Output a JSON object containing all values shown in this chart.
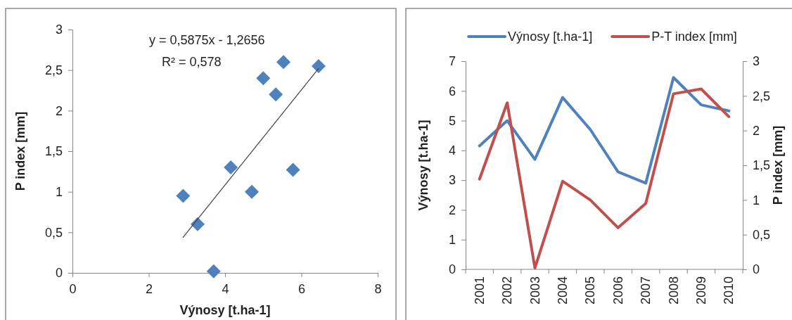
{
  "chart_data": [
    {
      "type": "scatter",
      "xlabel": "Výnosy [t.ha-1]",
      "ylabel": "P index [mm]",
      "annotations": [
        "y = 0,5875x - 1,2656",
        "R² = 0,578"
      ],
      "x": [
        4.15,
        5.0,
        3.7,
        5.78,
        4.7,
        3.28,
        2.9,
        6.45,
        5.53,
        5.33
      ],
      "series": [
        {
          "type": "scatter",
          "marker": "diamond",
          "color": "#4f81bd",
          "values": [
            1.3,
            2.4,
            0.02,
            1.27,
            1.0,
            0.6,
            0.95,
            2.55,
            2.6,
            2.2
          ]
        },
        {
          "type": "line",
          "marker": "none",
          "color": "#404040",
          "x": [
            2.9,
            6.45
          ],
          "values": [
            0.44,
            2.52
          ]
        }
      ],
      "xlim": [
        0,
        8
      ],
      "xticks": [
        0,
        2,
        4,
        6,
        8
      ],
      "ylim": [
        0,
        3
      ],
      "yticks": [
        0,
        {
          "value": 0.5,
          "label": "0,5"
        },
        1,
        {
          "value": 1.5,
          "label": "1,5"
        },
        2,
        {
          "value": 2.5,
          "label": "2,5"
        },
        3
      ]
    },
    {
      "type": "line",
      "ylabel": "Výnosy [t.ha-1]",
      "y2label": "P index [mm]",
      "categories": [
        "2001",
        "2002",
        "2003",
        "2004",
        "2005",
        "2006",
        "2007",
        "2008",
        "2009",
        "2010"
      ],
      "series": [
        {
          "name": "Výnosy [t.ha-1]",
          "color": "#4f81bd",
          "values": [
            4.15,
            5.0,
            3.7,
            5.78,
            4.7,
            3.28,
            2.9,
            6.45,
            5.53,
            5.33
          ]
        },
        {
          "name": "P-T index [mm]",
          "color": "#c0504d",
          "axis": "y2",
          "values": [
            1.3,
            2.4,
            0.02,
            1.27,
            1.0,
            0.6,
            0.95,
            2.53,
            2.6,
            2.2
          ]
        }
      ],
      "ylim": [
        0,
        7
      ],
      "yticks": [
        0,
        1,
        2,
        3,
        4,
        5,
        6,
        7
      ],
      "y2lim": [
        0,
        3
      ],
      "y2ticks": [
        0,
        {
          "value": 0.5,
          "label": "0,5"
        },
        1,
        {
          "value": 1.5,
          "label": "1,5"
        },
        2,
        {
          "value": 2.5,
          "label": "2,5"
        },
        3
      ],
      "legend": "top",
      "marker": "none"
    }
  ]
}
